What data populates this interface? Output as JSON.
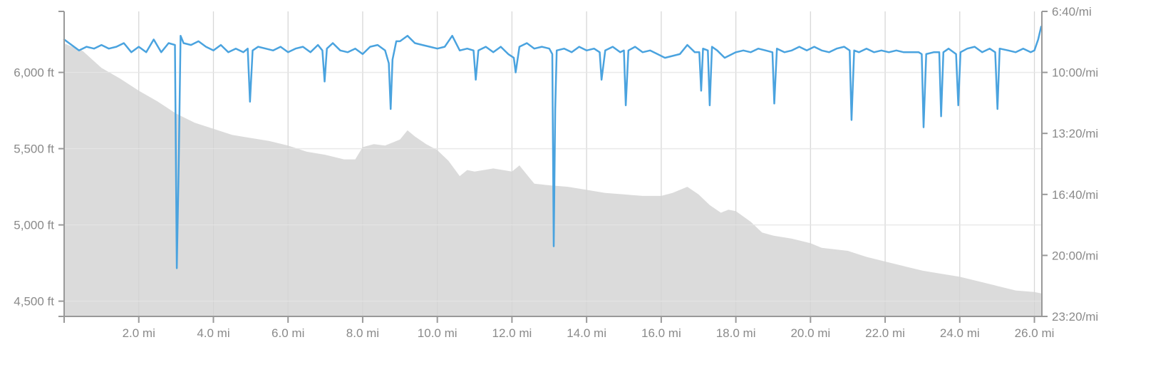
{
  "chart_data": {
    "type": "line",
    "title": "",
    "xlabel": "",
    "ylabel": "",
    "grid": true,
    "x_axis": {
      "unit": "mi",
      "range": [
        0,
        26.2
      ],
      "ticks": [
        {
          "value": 2,
          "label": "2.0 mi"
        },
        {
          "value": 4,
          "label": "4.0 mi"
        },
        {
          "value": 6,
          "label": "6.0 mi"
        },
        {
          "value": 8,
          "label": "8.0 mi"
        },
        {
          "value": 10,
          "label": "10.0 mi"
        },
        {
          "value": 12,
          "label": "12.0 mi"
        },
        {
          "value": 14,
          "label": "14.0 mi"
        },
        {
          "value": 16,
          "label": "16.0 mi"
        },
        {
          "value": 18,
          "label": "18.0 mi"
        },
        {
          "value": 20,
          "label": "20.0 mi"
        },
        {
          "value": 22,
          "label": "22.0 mi"
        },
        {
          "value": 24,
          "label": "24.0 mi"
        },
        {
          "value": 26,
          "label": "26.0 mi"
        }
      ]
    },
    "y_left": {
      "unit": "ft",
      "range": [
        4400,
        6400
      ],
      "ticks": [
        {
          "value": 6000,
          "label": "6,000 ft"
        },
        {
          "value": 5500,
          "label": "5,500 ft"
        },
        {
          "value": 5000,
          "label": "5,000 ft"
        },
        {
          "value": 4500,
          "label": "4,500 ft"
        }
      ]
    },
    "y_right": {
      "unit": "min/mi",
      "range": [
        6.667,
        23.333
      ],
      "inverted": true,
      "ticks": [
        {
          "value": 6.667,
          "label": "6:40/mi"
        },
        {
          "value": 10.0,
          "label": "10:00/mi"
        },
        {
          "value": 13.333,
          "label": "13:20/mi"
        },
        {
          "value": 16.667,
          "label": "16:40/mi"
        },
        {
          "value": 20.0,
          "label": "20:00/mi"
        },
        {
          "value": 23.333,
          "label": "23:20/mi"
        }
      ]
    },
    "series": [
      {
        "kind": "area",
        "axis": "left",
        "color": "#d9d9d9",
        "points": [
          [
            0,
            6190
          ],
          [
            0.5,
            6140
          ],
          [
            1.0,
            6030
          ],
          [
            1.5,
            5960
          ],
          [
            2.0,
            5880
          ],
          [
            2.5,
            5810
          ],
          [
            3.0,
            5730
          ],
          [
            3.5,
            5670
          ],
          [
            4.0,
            5630
          ],
          [
            4.5,
            5590
          ],
          [
            5.0,
            5570
          ],
          [
            5.5,
            5550
          ],
          [
            6.0,
            5520
          ],
          [
            6.5,
            5480
          ],
          [
            7.0,
            5460
          ],
          [
            7.5,
            5430
          ],
          [
            7.8,
            5430
          ],
          [
            8.0,
            5510
          ],
          [
            8.3,
            5530
          ],
          [
            8.6,
            5520
          ],
          [
            9.0,
            5560
          ],
          [
            9.2,
            5620
          ],
          [
            9.4,
            5580
          ],
          [
            9.7,
            5530
          ],
          [
            10.0,
            5490
          ],
          [
            10.3,
            5420
          ],
          [
            10.6,
            5320
          ],
          [
            10.8,
            5360
          ],
          [
            11.0,
            5350
          ],
          [
            11.5,
            5370
          ],
          [
            12.0,
            5350
          ],
          [
            12.2,
            5390
          ],
          [
            12.4,
            5330
          ],
          [
            12.6,
            5270
          ],
          [
            13.0,
            5260
          ],
          [
            13.5,
            5250
          ],
          [
            14.0,
            5230
          ],
          [
            14.5,
            5210
          ],
          [
            15.0,
            5200
          ],
          [
            15.5,
            5190
          ],
          [
            16.0,
            5190
          ],
          [
            16.3,
            5210
          ],
          [
            16.7,
            5250
          ],
          [
            17.0,
            5200
          ],
          [
            17.3,
            5130
          ],
          [
            17.6,
            5080
          ],
          [
            17.8,
            5100
          ],
          [
            18.0,
            5090
          ],
          [
            18.4,
            5020
          ],
          [
            18.7,
            4950
          ],
          [
            19.0,
            4930
          ],
          [
            19.5,
            4910
          ],
          [
            20.0,
            4880
          ],
          [
            20.3,
            4850
          ],
          [
            21.0,
            4830
          ],
          [
            21.5,
            4790
          ],
          [
            22.0,
            4760
          ],
          [
            22.5,
            4730
          ],
          [
            23.0,
            4700
          ],
          [
            23.5,
            4680
          ],
          [
            24.0,
            4660
          ],
          [
            24.5,
            4630
          ],
          [
            25.0,
            4600
          ],
          [
            25.5,
            4570
          ],
          [
            26.0,
            4560
          ],
          [
            26.2,
            4550
          ]
        ]
      },
      {
        "kind": "line",
        "axis": "right",
        "color": "#4aa3df",
        "points": [
          [
            0,
            8.2
          ],
          [
            0.2,
            8.5
          ],
          [
            0.4,
            8.8
          ],
          [
            0.6,
            8.6
          ],
          [
            0.8,
            8.7
          ],
          [
            1.0,
            8.5
          ],
          [
            1.2,
            8.7
          ],
          [
            1.4,
            8.6
          ],
          [
            1.6,
            8.4
          ],
          [
            1.8,
            8.9
          ],
          [
            2.0,
            8.6
          ],
          [
            2.2,
            8.9
          ],
          [
            2.4,
            8.2
          ],
          [
            2.6,
            8.9
          ],
          [
            2.8,
            8.4
          ],
          [
            2.97,
            8.5
          ],
          [
            3.02,
            20.7
          ],
          [
            3.07,
            15.0
          ],
          [
            3.12,
            8.0
          ],
          [
            3.2,
            8.4
          ],
          [
            3.4,
            8.5
          ],
          [
            3.6,
            8.3
          ],
          [
            3.8,
            8.6
          ],
          [
            4.0,
            8.8
          ],
          [
            4.2,
            8.5
          ],
          [
            4.4,
            8.9
          ],
          [
            4.6,
            8.7
          ],
          [
            4.8,
            8.9
          ],
          [
            4.92,
            8.7
          ],
          [
            4.98,
            11.6
          ],
          [
            5.05,
            8.8
          ],
          [
            5.2,
            8.6
          ],
          [
            5.4,
            8.7
          ],
          [
            5.6,
            8.8
          ],
          [
            5.8,
            8.6
          ],
          [
            6.0,
            8.9
          ],
          [
            6.2,
            8.7
          ],
          [
            6.4,
            8.6
          ],
          [
            6.6,
            8.9
          ],
          [
            6.8,
            8.5
          ],
          [
            6.92,
            8.8
          ],
          [
            6.98,
            10.5
          ],
          [
            7.04,
            8.7
          ],
          [
            7.2,
            8.4
          ],
          [
            7.4,
            8.8
          ],
          [
            7.6,
            8.9
          ],
          [
            7.8,
            8.7
          ],
          [
            8.0,
            9.0
          ],
          [
            8.2,
            8.6
          ],
          [
            8.4,
            8.5
          ],
          [
            8.6,
            8.8
          ],
          [
            8.7,
            9.5
          ],
          [
            8.75,
            12.0
          ],
          [
            8.8,
            9.3
          ],
          [
            8.9,
            8.3
          ],
          [
            9.0,
            8.3
          ],
          [
            9.2,
            8.0
          ],
          [
            9.4,
            8.4
          ],
          [
            9.6,
            8.5
          ],
          [
            9.8,
            8.6
          ],
          [
            10.0,
            8.7
          ],
          [
            10.2,
            8.6
          ],
          [
            10.4,
            8.0
          ],
          [
            10.6,
            8.8
          ],
          [
            10.8,
            8.7
          ],
          [
            10.97,
            8.8
          ],
          [
            11.03,
            10.4
          ],
          [
            11.1,
            8.8
          ],
          [
            11.3,
            8.6
          ],
          [
            11.5,
            8.9
          ],
          [
            11.7,
            8.6
          ],
          [
            11.9,
            9.0
          ],
          [
            12.05,
            9.2
          ],
          [
            12.1,
            10.0
          ],
          [
            12.2,
            8.6
          ],
          [
            12.4,
            8.4
          ],
          [
            12.6,
            8.7
          ],
          [
            12.8,
            8.6
          ],
          [
            13.0,
            8.7
          ],
          [
            13.08,
            9.0
          ],
          [
            13.12,
            19.5
          ],
          [
            13.16,
            12.0
          ],
          [
            13.2,
            8.8
          ],
          [
            13.4,
            8.7
          ],
          [
            13.6,
            8.9
          ],
          [
            13.8,
            8.6
          ],
          [
            14.0,
            8.8
          ],
          [
            14.2,
            8.7
          ],
          [
            14.35,
            8.9
          ],
          [
            14.4,
            10.4
          ],
          [
            14.5,
            8.8
          ],
          [
            14.7,
            8.6
          ],
          [
            14.9,
            8.9
          ],
          [
            15.0,
            8.8
          ],
          [
            15.05,
            11.8
          ],
          [
            15.12,
            8.8
          ],
          [
            15.3,
            8.6
          ],
          [
            15.5,
            8.9
          ],
          [
            15.7,
            8.8
          ],
          [
            15.9,
            9.0
          ],
          [
            16.1,
            9.2
          ],
          [
            16.3,
            9.1
          ],
          [
            16.5,
            9.0
          ],
          [
            16.7,
            8.5
          ],
          [
            16.9,
            8.9
          ],
          [
            17.02,
            8.9
          ],
          [
            17.07,
            11.0
          ],
          [
            17.12,
            8.7
          ],
          [
            17.25,
            8.8
          ],
          [
            17.3,
            11.8
          ],
          [
            17.36,
            8.6
          ],
          [
            17.5,
            8.8
          ],
          [
            17.7,
            9.2
          ],
          [
            17.9,
            9.0
          ],
          [
            18.0,
            8.9
          ],
          [
            18.2,
            8.8
          ],
          [
            18.4,
            8.9
          ],
          [
            18.6,
            8.7
          ],
          [
            18.8,
            8.8
          ],
          [
            18.98,
            8.9
          ],
          [
            19.03,
            11.7
          ],
          [
            19.1,
            8.7
          ],
          [
            19.3,
            8.9
          ],
          [
            19.5,
            8.8
          ],
          [
            19.7,
            8.6
          ],
          [
            19.9,
            8.8
          ],
          [
            20.1,
            8.6
          ],
          [
            20.3,
            8.8
          ],
          [
            20.5,
            8.9
          ],
          [
            20.7,
            8.7
          ],
          [
            20.9,
            8.6
          ],
          [
            21.05,
            8.8
          ],
          [
            21.1,
            12.6
          ],
          [
            21.17,
            8.8
          ],
          [
            21.3,
            8.9
          ],
          [
            21.5,
            8.7
          ],
          [
            21.7,
            8.9
          ],
          [
            21.9,
            8.8
          ],
          [
            22.1,
            8.9
          ],
          [
            22.3,
            8.8
          ],
          [
            22.5,
            8.9
          ],
          [
            22.7,
            8.9
          ],
          [
            22.9,
            8.9
          ],
          [
            22.98,
            9.0
          ],
          [
            23.03,
            13.0
          ],
          [
            23.1,
            9.0
          ],
          [
            23.3,
            8.9
          ],
          [
            23.45,
            8.9
          ],
          [
            23.5,
            12.4
          ],
          [
            23.56,
            8.9
          ],
          [
            23.7,
            8.7
          ],
          [
            23.9,
            9.0
          ],
          [
            23.96,
            11.8
          ],
          [
            24.02,
            8.9
          ],
          [
            24.2,
            8.7
          ],
          [
            24.4,
            8.6
          ],
          [
            24.6,
            8.9
          ],
          [
            24.8,
            8.7
          ],
          [
            24.95,
            8.9
          ],
          [
            25.01,
            12.0
          ],
          [
            25.07,
            8.7
          ],
          [
            25.3,
            8.8
          ],
          [
            25.5,
            8.9
          ],
          [
            25.7,
            8.7
          ],
          [
            25.9,
            8.9
          ],
          [
            26.0,
            8.8
          ],
          [
            26.1,
            8.2
          ],
          [
            26.18,
            7.5
          ]
        ]
      }
    ]
  }
}
